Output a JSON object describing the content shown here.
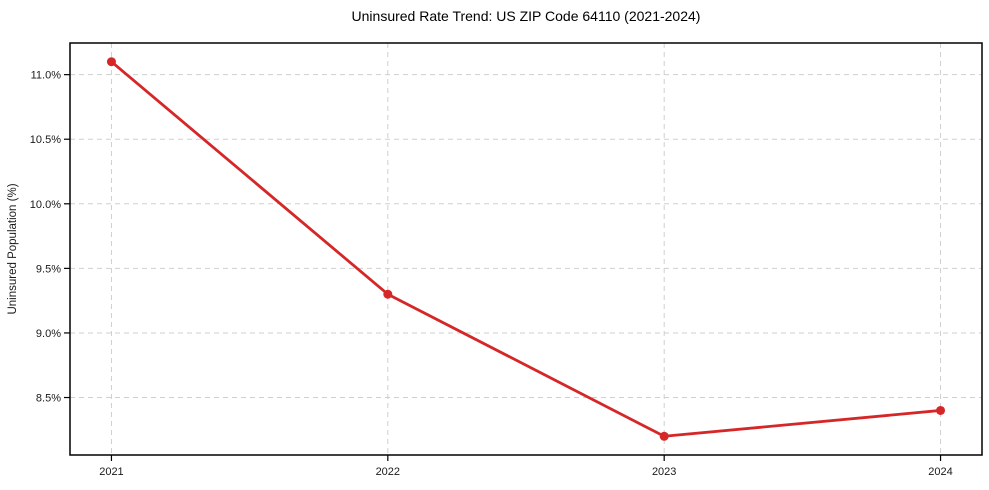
{
  "figure": {
    "background": "#ffffff"
  },
  "chart_data": {
    "type": "line",
    "title": "Uninsured Rate Trend: US ZIP Code 64110 (2021-2024)",
    "xlabel": "",
    "ylabel": "Uninsured Population (%)",
    "x": [
      2021,
      2022,
      2023,
      2024
    ],
    "values": [
      11.1,
      9.3,
      8.2,
      8.4
    ],
    "xlim": [
      2020.85,
      2024.15
    ],
    "ylim": [
      8.055,
      11.245
    ],
    "x_ticks": [
      {
        "value": 2021,
        "label": "2021"
      },
      {
        "value": 2022,
        "label": "2022"
      },
      {
        "value": 2023,
        "label": "2023"
      },
      {
        "value": 2024,
        "label": "2024"
      }
    ],
    "y_ticks": [
      {
        "value": 8.5,
        "label": "8.5%"
      },
      {
        "value": 9.0,
        "label": "9.0%"
      },
      {
        "value": 9.5,
        "label": "9.5%"
      },
      {
        "value": 10.0,
        "label": "10.0%"
      },
      {
        "value": 10.5,
        "label": "10.5%"
      },
      {
        "value": 11.0,
        "label": "11.0%"
      }
    ],
    "grid": true,
    "grid_style": "dashed",
    "legend": false,
    "marker": "circle",
    "line_color": "#d62728",
    "grid_color": "#cfcfcf",
    "axis_color": "#000000",
    "text_color": "#1a1a1a"
  }
}
